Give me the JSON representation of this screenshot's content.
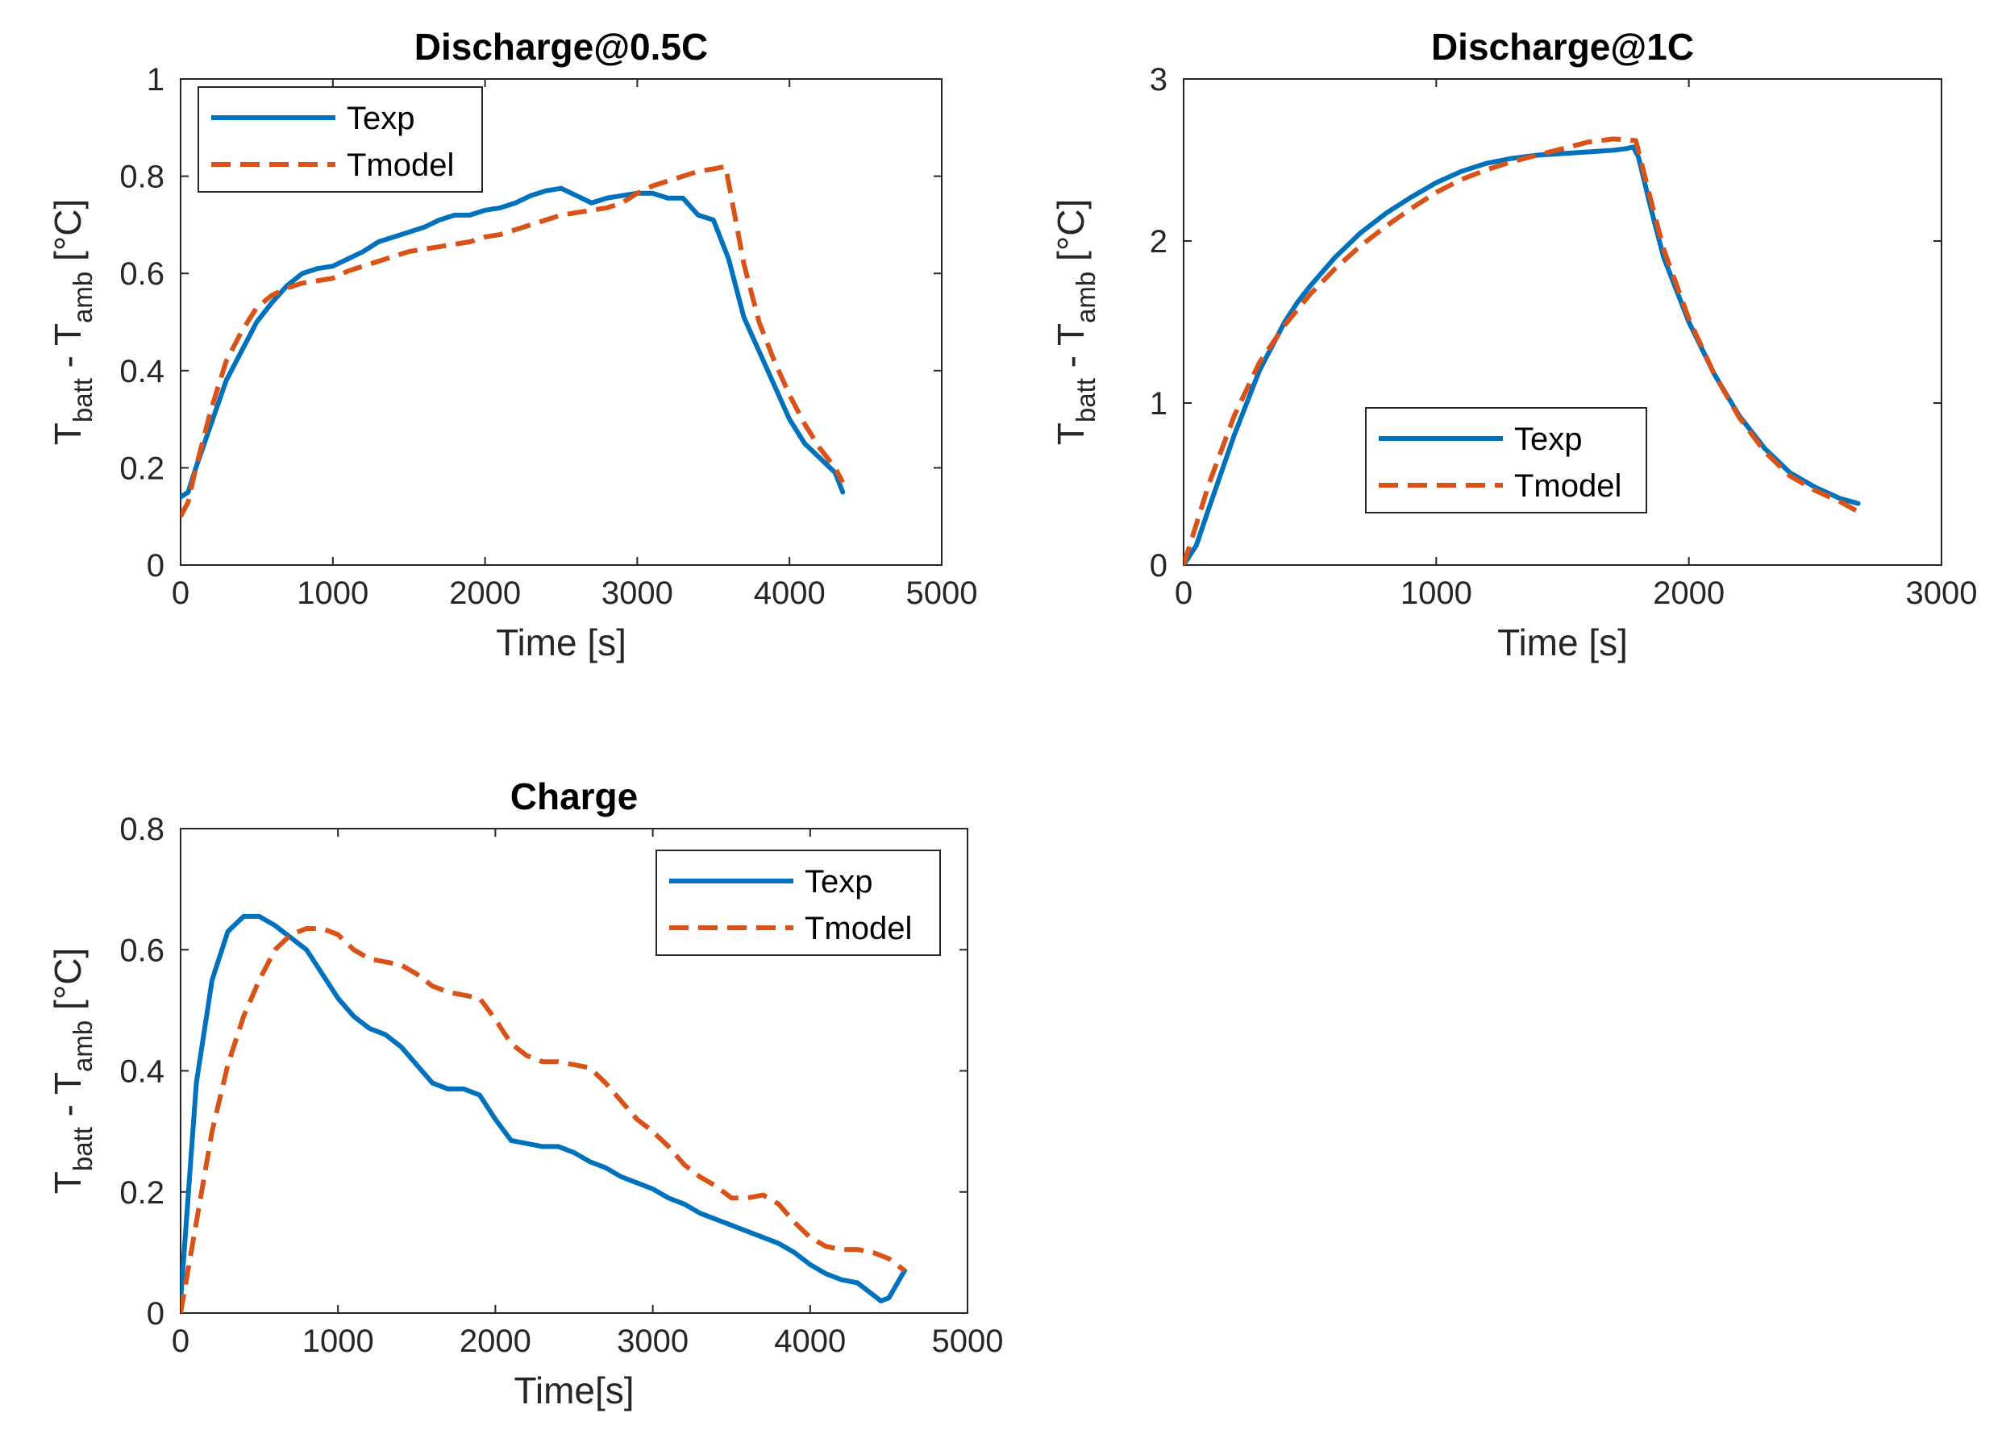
{
  "chart_data": [
    {
      "type": "line",
      "title": "Discharge@0.5C",
      "xlabel": "Time [s]",
      "ylabel": {
        "main": "T",
        "sub1": "batt",
        "mid": " - T",
        "sub2": "amb",
        "tail": " [°C]"
      },
      "xlim": [
        0,
        5000
      ],
      "ylim": [
        0,
        1
      ],
      "xticks": [
        0,
        1000,
        2000,
        3000,
        4000,
        5000
      ],
      "yticks": [
        0,
        0.2,
        0.4,
        0.6,
        0.8,
        1
      ],
      "xtick_labels": [
        "0",
        "1000",
        "2000",
        "3000",
        "4000",
        "5000"
      ],
      "ytick_labels": [
        "0",
        "0.2",
        "0.4",
        "0.6",
        "0.8",
        "1"
      ],
      "legend_position": "top-left",
      "legend_box": "top-left",
      "series": [
        {
          "name": "Texp",
          "color": "#0072BD",
          "style": "solid",
          "x": [
            0,
            50,
            100,
            200,
            300,
            400,
            500,
            600,
            700,
            800,
            900,
            1000,
            1100,
            1200,
            1300,
            1400,
            1500,
            1600,
            1700,
            1800,
            1900,
            2000,
            2100,
            2200,
            2300,
            2400,
            2500,
            2600,
            2700,
            2800,
            2900,
            3000,
            3100,
            3200,
            3300,
            3400,
            3500,
            3600,
            3700,
            3800,
            3900,
            4000,
            4100,
            4200,
            4300,
            4350
          ],
          "y": [
            0.14,
            0.15,
            0.2,
            0.29,
            0.38,
            0.44,
            0.5,
            0.54,
            0.575,
            0.6,
            0.61,
            0.615,
            0.63,
            0.645,
            0.665,
            0.675,
            0.685,
            0.695,
            0.71,
            0.72,
            0.72,
            0.73,
            0.735,
            0.745,
            0.76,
            0.77,
            0.775,
            0.76,
            0.745,
            0.755,
            0.76,
            0.765,
            0.765,
            0.755,
            0.755,
            0.72,
            0.71,
            0.63,
            0.51,
            0.44,
            0.37,
            0.3,
            0.25,
            0.22,
            0.19,
            0.15
          ]
        },
        {
          "name": "Tmodel",
          "color": "#D95319",
          "style": "dashed",
          "x": [
            0,
            50,
            100,
            200,
            300,
            400,
            500,
            600,
            700,
            800,
            900,
            1000,
            1100,
            1200,
            1300,
            1400,
            1500,
            1600,
            1700,
            1800,
            1900,
            2000,
            2100,
            2200,
            2300,
            2400,
            2500,
            2600,
            2700,
            2800,
            2900,
            3000,
            3100,
            3200,
            3300,
            3400,
            3500,
            3580,
            3700,
            3800,
            3900,
            4000,
            4100,
            4200,
            4300,
            4350
          ],
          "y": [
            0.1,
            0.13,
            0.2,
            0.32,
            0.42,
            0.48,
            0.53,
            0.555,
            0.57,
            0.58,
            0.585,
            0.59,
            0.605,
            0.615,
            0.625,
            0.635,
            0.645,
            0.65,
            0.655,
            0.66,
            0.665,
            0.675,
            0.68,
            0.69,
            0.7,
            0.71,
            0.72,
            0.725,
            0.73,
            0.735,
            0.745,
            0.765,
            0.78,
            0.79,
            0.8,
            0.81,
            0.815,
            0.82,
            0.62,
            0.5,
            0.42,
            0.35,
            0.29,
            0.24,
            0.2,
            0.17
          ]
        }
      ]
    },
    {
      "type": "line",
      "title": "Discharge@1C",
      "xlabel": "Time [s]",
      "ylabel": {
        "main": "T",
        "sub1": "batt",
        "mid": " - T",
        "sub2": "amb",
        "tail": " [°C]"
      },
      "xlim": [
        0,
        3000
      ],
      "ylim": [
        0,
        3
      ],
      "xticks": [
        0,
        1000,
        2000,
        3000
      ],
      "yticks": [
        0,
        1,
        2,
        3
      ],
      "xtick_labels": [
        "0",
        "1000",
        "2000",
        "3000"
      ],
      "ytick_labels": [
        "0",
        "1",
        "2",
        "3"
      ],
      "legend_position": "bottom-center",
      "legend_box": "center-bottom",
      "series": [
        {
          "name": "Texp",
          "color": "#0072BD",
          "style": "solid",
          "x": [
            0,
            50,
            100,
            200,
            300,
            400,
            450,
            500,
            600,
            700,
            800,
            900,
            1000,
            1100,
            1200,
            1300,
            1400,
            1500,
            1600,
            1700,
            1750,
            1780,
            1800,
            1850,
            1900,
            2000,
            2100,
            2200,
            2300,
            2400,
            2500,
            2600,
            2670
          ],
          "y": [
            0,
            0.12,
            0.35,
            0.8,
            1.2,
            1.5,
            1.62,
            1.72,
            1.9,
            2.05,
            2.17,
            2.27,
            2.36,
            2.43,
            2.48,
            2.51,
            2.53,
            2.54,
            2.55,
            2.56,
            2.57,
            2.58,
            2.52,
            2.2,
            1.9,
            1.5,
            1.18,
            0.92,
            0.72,
            0.57,
            0.48,
            0.41,
            0.38
          ]
        },
        {
          "name": "Tmodel",
          "color": "#D95319",
          "style": "dashed",
          "x": [
            0,
            50,
            100,
            200,
            300,
            400,
            500,
            600,
            700,
            800,
            900,
            1000,
            1100,
            1200,
            1300,
            1400,
            1500,
            1600,
            1700,
            1790,
            1850,
            1900,
            2000,
            2100,
            2200,
            2300,
            2400,
            2500,
            2600,
            2670
          ],
          "y": [
            0,
            0.25,
            0.5,
            0.92,
            1.25,
            1.48,
            1.67,
            1.83,
            1.97,
            2.09,
            2.2,
            2.3,
            2.38,
            2.44,
            2.49,
            2.53,
            2.57,
            2.61,
            2.63,
            2.62,
            2.25,
            1.95,
            1.52,
            1.18,
            0.91,
            0.7,
            0.55,
            0.46,
            0.39,
            0.33
          ]
        }
      ]
    },
    {
      "type": "line",
      "title": "Charge",
      "xlabel": "Time[s]",
      "ylabel": {
        "main": "T",
        "sub1": "batt",
        "mid": " - T",
        "sub2": "amb",
        "tail": " [°C]"
      },
      "xlim": [
        0,
        5000
      ],
      "ylim": [
        0,
        0.8
      ],
      "xticks": [
        0,
        1000,
        2000,
        3000,
        4000,
        5000
      ],
      "yticks": [
        0,
        0.2,
        0.4,
        0.6,
        0.8
      ],
      "xtick_labels": [
        "0",
        "1000",
        "2000",
        "3000",
        "4000",
        "5000"
      ],
      "ytick_labels": [
        "0",
        "0.2",
        "0.4",
        "0.6",
        "0.8"
      ],
      "legend_position": "top-right",
      "legend_box": "top-right",
      "series": [
        {
          "name": "Texp",
          "color": "#0072BD",
          "style": "solid",
          "x": [
            0,
            50,
            100,
            200,
            300,
            400,
            500,
            600,
            700,
            800,
            900,
            1000,
            1100,
            1200,
            1300,
            1400,
            1500,
            1600,
            1700,
            1800,
            1900,
            2000,
            2100,
            2200,
            2300,
            2400,
            2500,
            2600,
            2700,
            2800,
            2900,
            3000,
            3100,
            3200,
            3300,
            3400,
            3500,
            3600,
            3700,
            3800,
            3900,
            4000,
            4100,
            4200,
            4300,
            4400,
            4450,
            4500,
            4600
          ],
          "y": [
            0.02,
            0.2,
            0.38,
            0.55,
            0.63,
            0.655,
            0.655,
            0.64,
            0.62,
            0.6,
            0.56,
            0.52,
            0.49,
            0.47,
            0.46,
            0.44,
            0.41,
            0.38,
            0.37,
            0.37,
            0.36,
            0.32,
            0.285,
            0.28,
            0.275,
            0.275,
            0.265,
            0.25,
            0.24,
            0.225,
            0.215,
            0.205,
            0.19,
            0.18,
            0.165,
            0.155,
            0.145,
            0.135,
            0.125,
            0.115,
            0.1,
            0.08,
            0.065,
            0.055,
            0.05,
            0.03,
            0.02,
            0.025,
            0.07
          ]
        },
        {
          "name": "Tmodel",
          "color": "#D95319",
          "style": "dashed",
          "x": [
            0,
            100,
            200,
            300,
            400,
            500,
            600,
            700,
            800,
            900,
            1000,
            1100,
            1200,
            1300,
            1400,
            1500,
            1600,
            1700,
            1800,
            1900,
            2000,
            2100,
            2200,
            2300,
            2400,
            2500,
            2600,
            2700,
            2800,
            2900,
            3000,
            3100,
            3200,
            3300,
            3400,
            3500,
            3600,
            3700,
            3800,
            3900,
            4000,
            4100,
            4200,
            4300,
            4400,
            4500,
            4600
          ],
          "y": [
            0,
            0.15,
            0.3,
            0.41,
            0.49,
            0.55,
            0.6,
            0.625,
            0.635,
            0.635,
            0.625,
            0.6,
            0.585,
            0.58,
            0.575,
            0.56,
            0.54,
            0.53,
            0.525,
            0.52,
            0.485,
            0.445,
            0.425,
            0.415,
            0.415,
            0.41,
            0.405,
            0.38,
            0.35,
            0.32,
            0.3,
            0.275,
            0.245,
            0.225,
            0.21,
            0.19,
            0.19,
            0.195,
            0.18,
            0.15,
            0.125,
            0.11,
            0.105,
            0.105,
            0.1,
            0.09,
            0.07
          ]
        }
      ]
    }
  ]
}
